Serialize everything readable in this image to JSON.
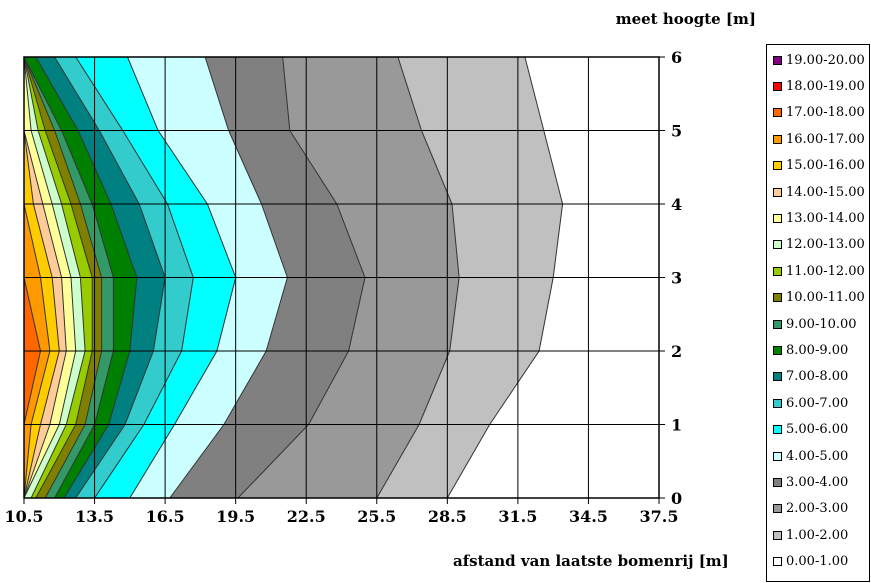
{
  "chart_data": {
    "type": "contour",
    "y_title": "meet hoogte [m]",
    "x_title": "afstand van laatste bomenrij [m]",
    "x_ticks": [
      "10.5",
      "13.5",
      "16.5",
      "19.5",
      "22.5",
      "25.5",
      "28.5",
      "31.5",
      "34.5",
      "37.5"
    ],
    "y_ticks": [
      "0",
      "1",
      "2",
      "3",
      "4",
      "5",
      "6"
    ],
    "xlim": [
      10.5,
      37.5
    ],
    "ylim": [
      0,
      6
    ],
    "y_axis_side": "right",
    "grid": true,
    "legend_position": "right",
    "heights": [
      0,
      1,
      2,
      3,
      4,
      5,
      6
    ],
    "levels": [
      {
        "label": "19.00-20.00",
        "color": "#800080",
        "boundary": null
      },
      {
        "label": "18.00-19.00",
        "color": "#ff0000",
        "boundary": null
      },
      {
        "label": "17.00-18.00",
        "color": "#ff6600",
        "boundary": [
          10.5,
          10.5,
          11.2,
          10.5,
          10.5,
          10.5,
          10.5
        ]
      },
      {
        "label": "16.00-17.00",
        "color": "#ff9900",
        "boundary": [
          10.5,
          10.8,
          11.6,
          11.2,
          10.5,
          10.5,
          10.5
        ]
      },
      {
        "label": "15.00-16.00",
        "color": "#ffcc00",
        "boundary": [
          10.5,
          11.2,
          12.0,
          11.7,
          10.9,
          10.5,
          10.5
        ]
      },
      {
        "label": "14.00-15.00",
        "color": "#ffcc99",
        "boundary": [
          10.5,
          11.6,
          12.3,
          12.1,
          11.3,
          10.5,
          10.5
        ]
      },
      {
        "label": "13.00-14.00",
        "color": "#ffff99",
        "boundary": [
          10.5,
          12.0,
          12.7,
          12.5,
          11.7,
          10.8,
          10.5
        ]
      },
      {
        "label": "12.00-13.00",
        "color": "#ccffcc",
        "boundary": [
          10.8,
          12.3,
          13.1,
          12.9,
          12.1,
          11.1,
          10.5
        ]
      },
      {
        "label": "11.00-12.00",
        "color": "#99cc00",
        "boundary": [
          11.0,
          12.7,
          13.4,
          13.4,
          12.5,
          11.4,
          10.5
        ]
      },
      {
        "label": "10.00-11.00",
        "color": "#808000",
        "boundary": [
          11.4,
          13.1,
          13.8,
          13.8,
          12.9,
          11.8,
          10.5
        ]
      },
      {
        "label": "9.00-10.00",
        "color": "#339966",
        "boundary": [
          11.8,
          13.5,
          14.3,
          14.3,
          13.4,
          12.1,
          10.5
        ]
      },
      {
        "label": "8.00-9.00",
        "color": "#008000",
        "boundary": [
          12.2,
          14.1,
          15.0,
          15.3,
          14.2,
          12.8,
          11.0
        ]
      },
      {
        "label": "7.00-8.00",
        "color": "#008080",
        "boundary": [
          12.7,
          14.8,
          16.0,
          16.5,
          15.4,
          13.7,
          11.8
        ]
      },
      {
        "label": "6.00-7.00",
        "color": "#33cccc",
        "boundary": [
          13.5,
          15.6,
          17.2,
          17.7,
          16.6,
          14.7,
          12.7
        ]
      },
      {
        "label": "5.00-6.00",
        "color": "#00ffff",
        "boundary": [
          15.0,
          16.9,
          18.7,
          19.5,
          18.3,
          16.2,
          14.9
        ]
      },
      {
        "label": "4.00-5.00",
        "color": "#ccffff",
        "boundary": [
          16.7,
          19.0,
          20.8,
          21.7,
          20.6,
          19.2,
          18.2
        ]
      },
      {
        "label": "3.00-4.00",
        "color": "#808080",
        "boundary": [
          19.6,
          22.6,
          24.3,
          25.0,
          23.8,
          21.8,
          21.5
        ]
      },
      {
        "label": "2.00-3.00",
        "color": "#999999",
        "boundary": [
          25.5,
          27.3,
          28.6,
          29.0,
          28.7,
          27.4,
          26.4
        ]
      },
      {
        "label": "1.00-2.00",
        "color": "#c0c0c0",
        "boundary": [
          37.5,
          37.5,
          37.5,
          37.5,
          37.5,
          37.5,
          37.5
        ]
      },
      {
        "label": "0.00-1.00",
        "color": "#ffffff",
        "boundary": null
      }
    ],
    "band_1_boundary": [
      28.5,
      30.3,
      32.4,
      33.0,
      33.4,
      32.6,
      31.8
    ]
  }
}
